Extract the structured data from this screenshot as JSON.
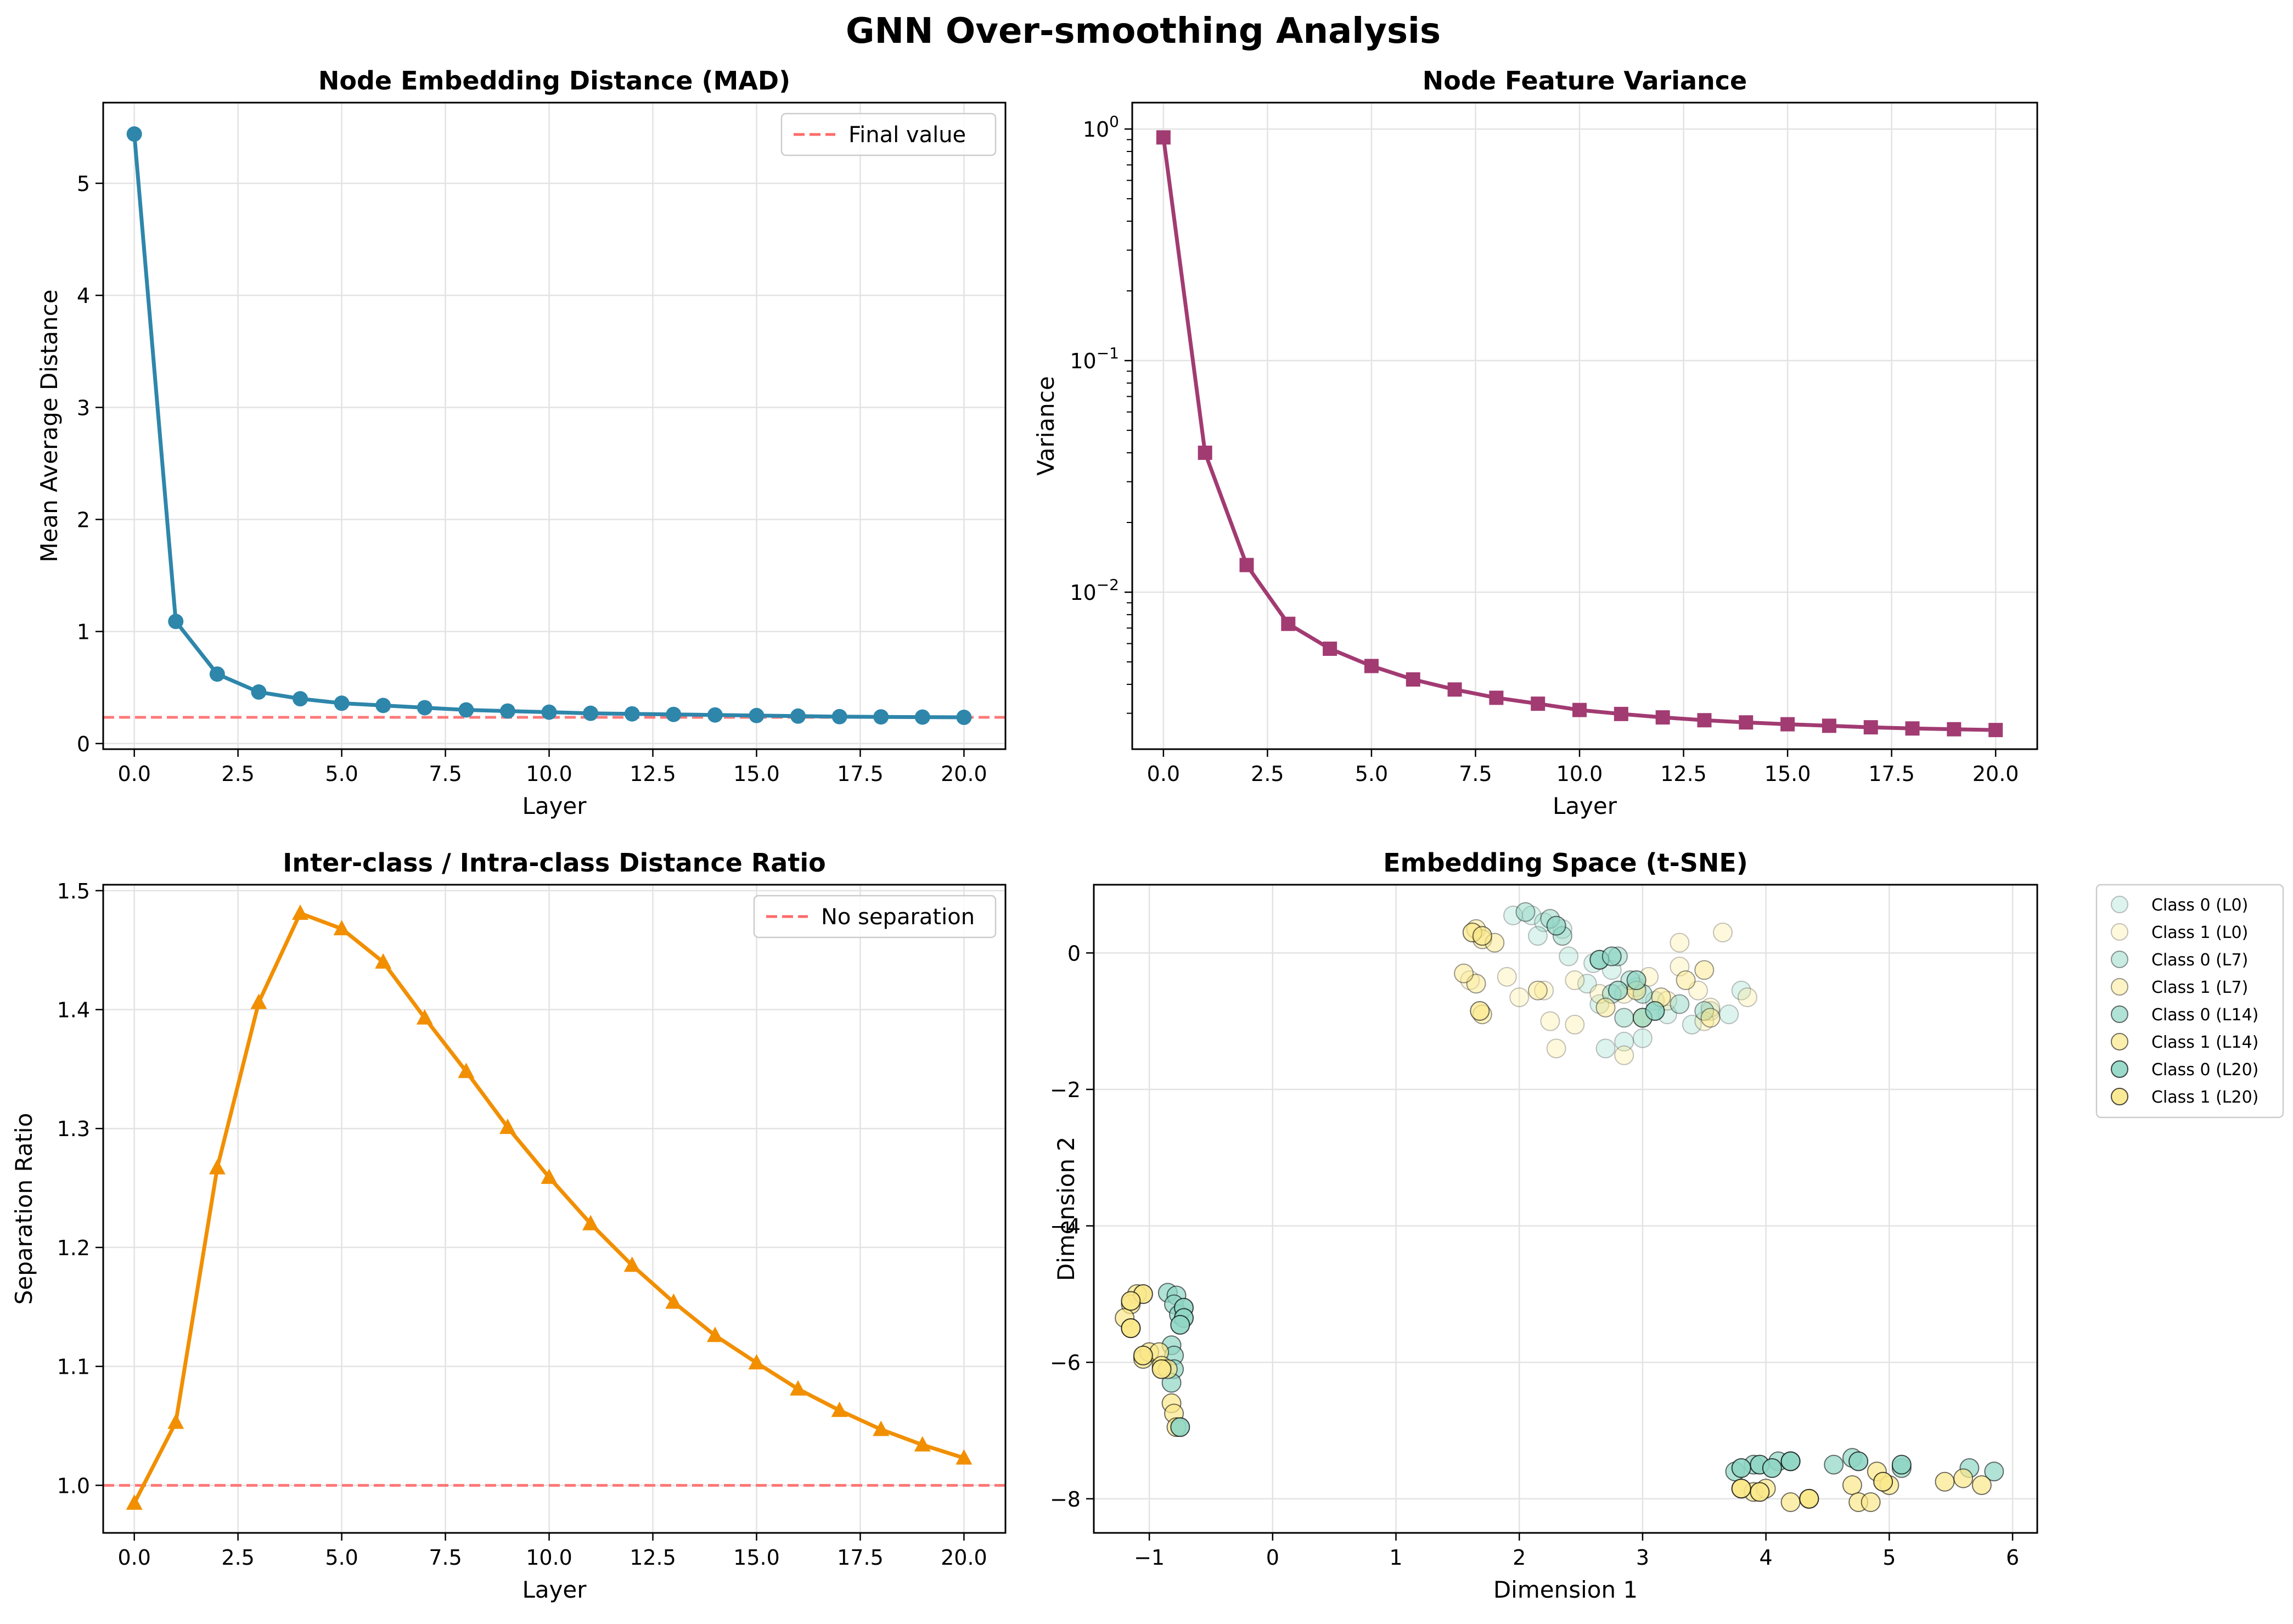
{
  "figure": {
    "title": "GNN Over-smoothing Analysis"
  },
  "chart_data": [
    {
      "type": "line",
      "title": "Node Embedding Distance (MAD)",
      "xlabel": "Layer",
      "ylabel": "Mean Average Distance",
      "xlim": [
        -0.75,
        21
      ],
      "ylim": [
        -0.05,
        5.72
      ],
      "xticks": [
        0,
        2.5,
        5,
        7.5,
        10,
        12.5,
        15,
        17.5,
        20
      ],
      "xtick_labels": [
        "0.0",
        "2.5",
        "5.0",
        "7.5",
        "10.0",
        "12.5",
        "15.0",
        "17.5",
        "20.0"
      ],
      "yticks": [
        0,
        1,
        2,
        3,
        4,
        5
      ],
      "ytick_labels": [
        "0",
        "1",
        "2",
        "3",
        "4",
        "5"
      ],
      "grid": true,
      "legend": "upper right",
      "series": [
        {
          "color": "#2e86ab",
          "marker": "circle",
          "x": [
            0,
            1,
            2,
            3,
            4,
            5,
            6,
            7,
            8,
            9,
            10,
            11,
            12,
            13,
            14,
            15,
            16,
            17,
            18,
            19,
            20
          ],
          "values": [
            5.44,
            1.09,
            0.62,
            0.46,
            0.4,
            0.36,
            0.34,
            0.32,
            0.3,
            0.29,
            0.28,
            0.27,
            0.265,
            0.26,
            0.255,
            0.25,
            0.245,
            0.24,
            0.238,
            0.236,
            0.234
          ]
        }
      ],
      "reference_line": {
        "name": "Final value",
        "y": 0.234,
        "color": "#ff6b6b"
      }
    },
    {
      "type": "line",
      "title": "Node Feature Variance",
      "xlabel": "Layer",
      "ylabel": "Variance",
      "yscale": "log",
      "xlim": [
        -0.75,
        21
      ],
      "ylim": [
        0.0021,
        1.3
      ],
      "xticks": [
        0,
        2.5,
        5,
        7.5,
        10,
        12.5,
        15,
        17.5,
        20
      ],
      "xtick_labels": [
        "0.0",
        "2.5",
        "5.0",
        "7.5",
        "10.0",
        "12.5",
        "15.0",
        "17.5",
        "20.0"
      ],
      "yticks": [
        1,
        0.1,
        0.01
      ],
      "ytick_labels": [
        [
          "10",
          "0"
        ],
        [
          "10",
          "−1"
        ],
        [
          "10",
          "−2"
        ]
      ],
      "grid": true,
      "series": [
        {
          "color": "#a23b72",
          "marker": "square",
          "x": [
            0,
            1,
            2,
            3,
            4,
            5,
            6,
            7,
            8,
            9,
            10,
            11,
            12,
            13,
            14,
            15,
            16,
            17,
            18,
            19,
            20
          ],
          "values": [
            0.92,
            0.04,
            0.0131,
            0.0073,
            0.0057,
            0.0048,
            0.0042,
            0.0038,
            0.0035,
            0.0033,
            0.0031,
            0.00298,
            0.00288,
            0.0028,
            0.00274,
            0.00269,
            0.00265,
            0.00261,
            0.00258,
            0.00256,
            0.00254
          ]
        }
      ]
    },
    {
      "type": "line",
      "title": "Inter-class / Intra-class Distance Ratio",
      "xlabel": "Layer",
      "ylabel": "Separation Ratio",
      "xlim": [
        -0.75,
        21
      ],
      "ylim": [
        0.96,
        1.505
      ],
      "xticks": [
        0,
        2.5,
        5,
        7.5,
        10,
        12.5,
        15,
        17.5,
        20
      ],
      "xtick_labels": [
        "0.0",
        "2.5",
        "5.0",
        "7.5",
        "10.0",
        "12.5",
        "15.0",
        "17.5",
        "20.0"
      ],
      "yticks": [
        1.0,
        1.1,
        1.2,
        1.3,
        1.4,
        1.5
      ],
      "ytick_labels": [
        "1.0",
        "1.1",
        "1.2",
        "1.3",
        "1.4",
        "1.5"
      ],
      "grid": true,
      "legend": "upper right",
      "series": [
        {
          "color": "#f18f01",
          "marker": "triangle",
          "x": [
            0,
            1,
            2,
            3,
            4,
            5,
            6,
            7,
            8,
            9,
            10,
            11,
            12,
            13,
            14,
            15,
            16,
            17,
            18,
            19,
            20
          ],
          "values": [
            0.985,
            1.053,
            1.267,
            1.406,
            1.481,
            1.468,
            1.44,
            1.393,
            1.348,
            1.301,
            1.259,
            1.22,
            1.185,
            1.154,
            1.126,
            1.103,
            1.081,
            1.063,
            1.047,
            1.034,
            1.023
          ]
        }
      ],
      "reference_line": {
        "name": "No separation",
        "y": 1.0,
        "color": "#ff6b6b"
      }
    },
    {
      "type": "scatter",
      "title": "Embedding Space (t-SNE)",
      "xlabel": "Dimension 1",
      "ylabel": "Dimension 2",
      "xlim": [
        -1.45,
        6.2
      ],
      "ylim": [
        -8.5,
        1.0
      ],
      "xticks": [
        -1,
        0,
        1,
        2,
        3,
        4,
        5,
        6
      ],
      "xtick_labels": [
        "−1",
        "0",
        "1",
        "2",
        "3",
        "4",
        "5",
        "6"
      ],
      "yticks": [
        0,
        -2,
        -4,
        -6,
        -8
      ],
      "ytick_labels": [
        "0",
        "−2",
        "−4",
        "−6",
        "−8"
      ],
      "grid": true,
      "legend": "outside upper right",
      "series": [
        {
          "name": "Class 0 (L0)",
          "color": "#8fd6c4",
          "alpha": 0.3,
          "points": [
            [
              1.95,
              0.55
            ],
            [
              2.1,
              0.55
            ],
            [
              2.2,
              0.45
            ],
            [
              2.35,
              0.35
            ],
            [
              2.15,
              0.25
            ],
            [
              2.4,
              -0.05
            ],
            [
              2.6,
              -0.15
            ],
            [
              2.75,
              -0.25
            ],
            [
              2.95,
              -0.5
            ],
            [
              3.1,
              -0.7
            ],
            [
              3.2,
              -0.9
            ],
            [
              3.4,
              -1.05
            ],
            [
              2.85,
              -1.3
            ],
            [
              3.0,
              -1.25
            ],
            [
              2.7,
              -1.4
            ],
            [
              3.55,
              -0.85
            ],
            [
              3.8,
              -0.55
            ],
            [
              3.7,
              -0.9
            ],
            [
              2.55,
              -0.45
            ],
            [
              2.65,
              -0.75
            ]
          ]
        },
        {
          "name": "Class 1 (L0)",
          "color": "#fbe88a",
          "alpha": 0.3,
          "points": [
            [
              1.6,
              -0.4
            ],
            [
              1.9,
              -0.35
            ],
            [
              2.0,
              -0.65
            ],
            [
              2.2,
              -0.55
            ],
            [
              2.45,
              -0.4
            ],
            [
              2.65,
              -0.6
            ],
            [
              2.85,
              -0.6
            ],
            [
              3.05,
              -0.35
            ],
            [
              3.3,
              -0.2
            ],
            [
              3.45,
              -0.55
            ],
            [
              3.55,
              -0.8
            ],
            [
              3.65,
              0.3
            ],
            [
              3.3,
              0.15
            ],
            [
              2.25,
              -1.0
            ],
            [
              2.45,
              -1.05
            ],
            [
              2.3,
              -1.4
            ],
            [
              2.85,
              -1.5
            ],
            [
              3.2,
              -0.7
            ],
            [
              3.85,
              -0.65
            ],
            [
              3.5,
              -1.0
            ]
          ]
        },
        {
          "name": "Class 0 (L7)",
          "color": "#8fd6c4",
          "alpha": 0.5,
          "points": [
            [
              2.05,
              0.6
            ],
            [
              2.25,
              0.5
            ],
            [
              2.35,
              0.25
            ],
            [
              2.8,
              -0.05
            ],
            [
              2.9,
              -0.4
            ],
            [
              2.75,
              -0.6
            ],
            [
              3.0,
              -0.6
            ],
            [
              3.1,
              -0.85
            ],
            [
              2.85,
              -0.95
            ],
            [
              3.3,
              -0.75
            ],
            [
              3.5,
              -0.85
            ],
            [
              2.65,
              -0.1
            ]
          ]
        },
        {
          "name": "Class 1 (L7)",
          "color": "#fbe88a",
          "alpha": 0.5,
          "points": [
            [
              1.65,
              0.35
            ],
            [
              1.7,
              0.2
            ],
            [
              1.8,
              0.15
            ],
            [
              1.65,
              -0.45
            ],
            [
              1.7,
              -0.9
            ],
            [
              2.15,
              -0.55
            ],
            [
              2.7,
              -0.8
            ],
            [
              2.95,
              -0.55
            ],
            [
              3.15,
              -0.65
            ],
            [
              3.35,
              -0.4
            ],
            [
              3.5,
              -0.25
            ],
            [
              3.55,
              -0.95
            ],
            [
              3.0,
              -0.95
            ],
            [
              1.55,
              -0.3
            ]
          ]
        },
        {
          "name": "Class 0 (L14)",
          "color": "#8fd6c4",
          "alpha": 0.7,
          "points": [
            [
              2.3,
              0.4
            ],
            [
              2.65,
              -0.1
            ],
            [
              2.75,
              -0.05
            ],
            [
              2.95,
              -0.4
            ],
            [
              2.8,
              -0.55
            ],
            [
              3.0,
              -0.95
            ],
            [
              3.1,
              -0.85
            ],
            [
              -0.85,
              -4.98
            ],
            [
              -0.78,
              -5.02
            ],
            [
              -0.8,
              -5.15
            ],
            [
              -0.76,
              -5.3
            ],
            [
              -0.82,
              -5.75
            ],
            [
              -0.8,
              -5.9
            ],
            [
              -0.8,
              -6.1
            ],
            [
              -0.82,
              -6.3
            ],
            [
              3.75,
              -7.6
            ],
            [
              3.9,
              -7.5
            ],
            [
              4.1,
              -7.45
            ],
            [
              4.2,
              -7.45
            ],
            [
              4.55,
              -7.5
            ],
            [
              4.7,
              -7.4
            ],
            [
              5.1,
              -7.55
            ],
            [
              5.65,
              -7.55
            ],
            [
              5.85,
              -7.6
            ]
          ]
        },
        {
          "name": "Class 1 (L14)",
          "color": "#fbe88a",
          "alpha": 0.7,
          "points": [
            [
              1.62,
              0.3
            ],
            [
              1.7,
              0.25
            ],
            [
              1.68,
              -0.85
            ],
            [
              -1.1,
              -5.0
            ],
            [
              -1.15,
              -5.15
            ],
            [
              -1.2,
              -5.35
            ],
            [
              -1.15,
              -5.5
            ],
            [
              -1.05,
              -5.95
            ],
            [
              -1.0,
              -5.85
            ],
            [
              -0.92,
              -5.85
            ],
            [
              -0.9,
              -6.05
            ],
            [
              -0.85,
              -6.1
            ],
            [
              -0.82,
              -6.6
            ],
            [
              -0.8,
              -6.75
            ],
            [
              -0.78,
              -6.95
            ],
            [
              3.8,
              -7.85
            ],
            [
              3.9,
              -7.9
            ],
            [
              4.0,
              -7.85
            ],
            [
              4.2,
              -8.05
            ],
            [
              4.35,
              -8.0
            ],
            [
              4.7,
              -7.8
            ],
            [
              4.75,
              -8.05
            ],
            [
              4.85,
              -8.05
            ],
            [
              4.9,
              -7.6
            ],
            [
              5.0,
              -7.8
            ],
            [
              5.45,
              -7.75
            ],
            [
              5.6,
              -7.7
            ],
            [
              5.75,
              -7.8
            ]
          ]
        },
        {
          "name": "Class 0 (L20)",
          "color": "#8fd6c4",
          "alpha": 0.9,
          "points": [
            [
              -0.72,
              -5.2
            ],
            [
              -0.72,
              -5.35
            ],
            [
              -0.75,
              -5.45
            ],
            [
              -0.75,
              -6.95
            ],
            [
              3.8,
              -7.55
            ],
            [
              3.95,
              -7.5
            ],
            [
              4.05,
              -7.55
            ],
            [
              4.2,
              -7.45
            ],
            [
              4.75,
              -7.45
            ],
            [
              5.1,
              -7.5
            ]
          ]
        },
        {
          "name": "Class 1 (L20)",
          "color": "#fbe88a",
          "alpha": 0.9,
          "points": [
            [
              -1.05,
              -5.0
            ],
            [
              -1.15,
              -5.1
            ],
            [
              -1.15,
              -5.5
            ],
            [
              -1.05,
              -5.9
            ],
            [
              -0.9,
              -6.1
            ],
            [
              3.8,
              -7.85
            ],
            [
              3.95,
              -7.9
            ],
            [
              4.35,
              -8.0
            ],
            [
              4.95,
              -7.75
            ]
          ]
        }
      ]
    }
  ]
}
